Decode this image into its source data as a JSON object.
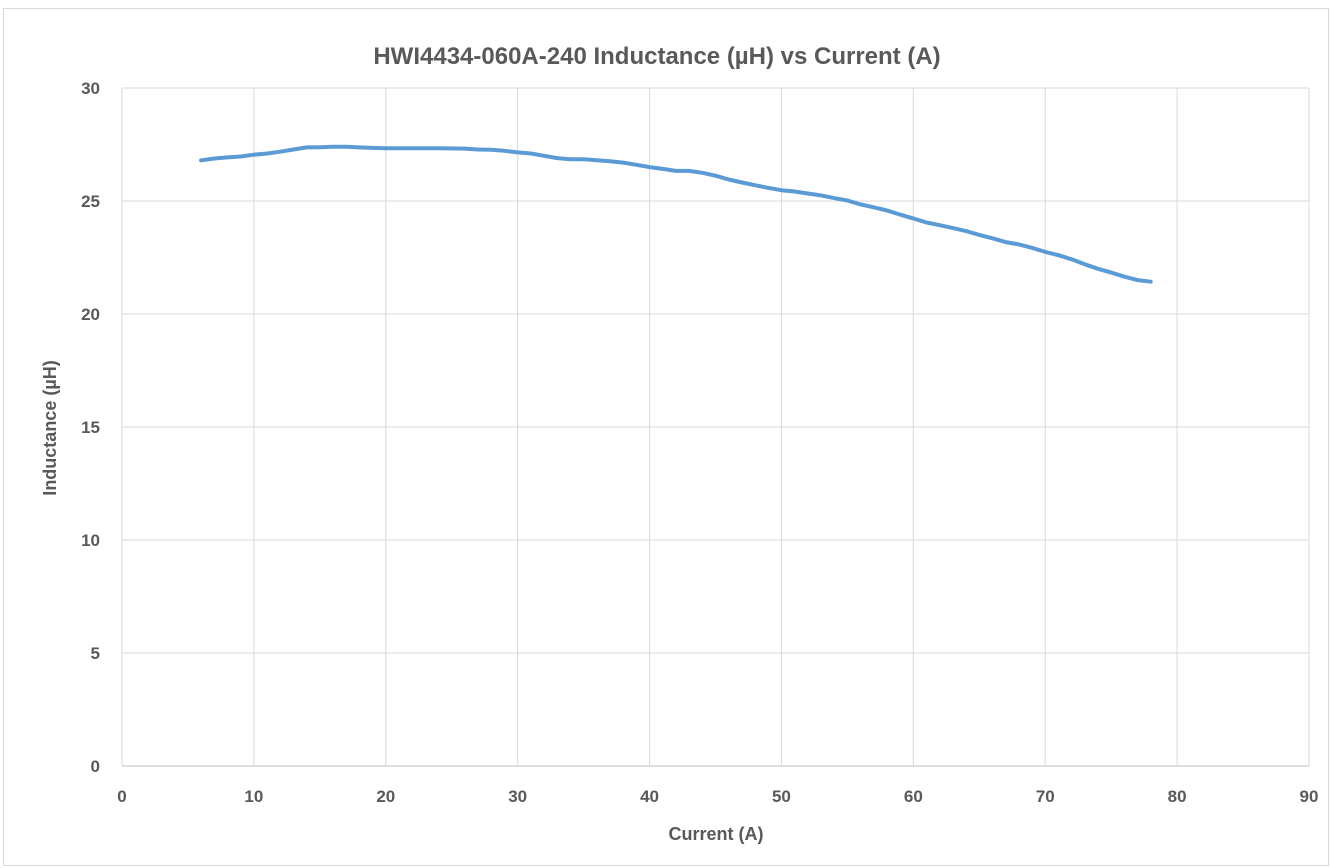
{
  "chart_data": {
    "type": "line",
    "title": "HWI4434-060A-240 Inductance (µH) vs Current (A)",
    "xlabel": "Current (A)",
    "ylabel": "Inductance (µH)",
    "xlim": [
      0,
      90
    ],
    "ylim": [
      0,
      30
    ],
    "xticks": [
      0,
      10,
      20,
      30,
      40,
      50,
      60,
      70,
      80,
      90
    ],
    "yticks": [
      0,
      5,
      10,
      15,
      20,
      25,
      30
    ],
    "grid": true,
    "legend": "none",
    "colors": {
      "series": "#5b9bd5",
      "grid": "#d9d9d9",
      "text": "#595959"
    },
    "series": [
      {
        "x": [
          6,
          7,
          8,
          9,
          10,
          11,
          12,
          13,
          14,
          15,
          16,
          17,
          18,
          19,
          20,
          22,
          24,
          26,
          27,
          28,
          29,
          30,
          31,
          32,
          33,
          34,
          35,
          36,
          37,
          38,
          39,
          40,
          41,
          42,
          43,
          44,
          45,
          46,
          47,
          48,
          49,
          50,
          51,
          52,
          53,
          54,
          55,
          56,
          57,
          58,
          59,
          60,
          61,
          62,
          63,
          64,
          65,
          66,
          67,
          68,
          69,
          70,
          71,
          72,
          73,
          74,
          75,
          76,
          77,
          78
        ],
        "values": [
          26.8,
          26.88,
          26.93,
          26.97,
          27.05,
          27.1,
          27.18,
          27.28,
          27.37,
          27.38,
          27.4,
          27.4,
          27.37,
          27.35,
          27.33,
          27.33,
          27.33,
          27.32,
          27.28,
          27.27,
          27.22,
          27.15,
          27.1,
          27.0,
          26.9,
          26.85,
          26.85,
          26.8,
          26.76,
          26.7,
          26.6,
          26.5,
          26.42,
          26.33,
          26.33,
          26.25,
          26.12,
          25.95,
          25.82,
          25.7,
          25.58,
          25.48,
          25.42,
          25.33,
          25.25,
          25.13,
          25.02,
          24.85,
          24.72,
          24.58,
          24.4,
          24.23,
          24.05,
          23.93,
          23.8,
          23.67,
          23.5,
          23.35,
          23.18,
          23.08,
          22.93,
          22.75,
          22.6,
          22.42,
          22.2,
          22.0,
          21.83,
          21.65,
          21.5,
          21.43
        ]
      }
    ]
  }
}
